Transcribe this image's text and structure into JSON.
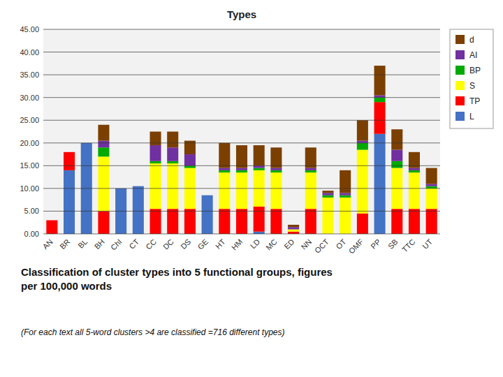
{
  "chart_data": {
    "type": "bar",
    "stacked": true,
    "grid": true,
    "legend": "right",
    "title": "Types",
    "categories": [
      "AN",
      "BR",
      "BL",
      "BH",
      "ChI",
      "CT",
      "CC",
      "DC",
      "DS",
      "GE",
      "HT",
      "HM",
      "LD",
      "MC",
      "ED",
      "NN",
      "OCT",
      "OT",
      "OMF",
      "PP",
      "SB",
      "TTC",
      "UT"
    ],
    "series": [
      {
        "name": "L",
        "color": "#4472C4",
        "values": [
          0.0,
          14.0,
          20.0,
          0.0,
          10.0,
          10.5,
          0.0,
          0.0,
          0.0,
          8.5,
          0.0,
          0.0,
          0.5,
          0.0,
          0.0,
          0.0,
          0.0,
          0.0,
          0.0,
          22.0,
          0.0,
          0.0,
          0.0
        ]
      },
      {
        "name": "TP",
        "color": "#FF0000",
        "values": [
          3.0,
          4.0,
          0.0,
          5.0,
          0.0,
          0.0,
          5.5,
          5.5,
          5.5,
          0.0,
          5.5,
          5.5,
          5.5,
          5.5,
          0.5,
          5.5,
          0.0,
          0.0,
          4.5,
          7.0,
          5.5,
          5.5,
          5.5
        ]
      },
      {
        "name": "S",
        "color": "#FFFF00",
        "values": [
          0.0,
          0.0,
          0.0,
          12.0,
          0.0,
          0.0,
          10.0,
          10.0,
          9.0,
          0.0,
          8.0,
          8.0,
          8.0,
          8.0,
          0.5,
          8.0,
          8.0,
          8.0,
          14.0,
          0.0,
          9.0,
          8.0,
          4.5
        ]
      },
      {
        "name": "BP",
        "color": "#00AA00",
        "values": [
          0.0,
          0.0,
          0.0,
          2.0,
          0.0,
          0.0,
          0.5,
          0.5,
          0.5,
          0.0,
          0.5,
          0.5,
          0.5,
          0.5,
          0.0,
          0.5,
          0.5,
          0.5,
          1.5,
          1.0,
          1.5,
          0.5,
          0.5
        ]
      },
      {
        "name": "AI",
        "color": "#7030A0",
        "values": [
          0.0,
          0.0,
          0.0,
          1.5,
          0.0,
          0.0,
          3.5,
          3.0,
          2.5,
          0.0,
          0.5,
          0.5,
          0.5,
          0.5,
          0.5,
          0.5,
          0.5,
          0.5,
          0.5,
          0.5,
          2.5,
          0.5,
          0.5
        ]
      },
      {
        "name": "d",
        "color": "#7B3F00",
        "values": [
          0.0,
          0.0,
          0.0,
          3.5,
          0.0,
          0.0,
          3.0,
          3.5,
          3.0,
          0.0,
          5.5,
          5.0,
          4.5,
          4.5,
          0.5,
          4.5,
          0.5,
          5.0,
          4.5,
          6.5,
          4.5,
          3.5,
          3.5
        ]
      }
    ],
    "ylim": [
      0,
      45
    ],
    "yticks": [
      {
        "value": 0,
        "label": "0.00"
      },
      {
        "value": 5,
        "label": "5.00"
      },
      {
        "value": 10,
        "label": "10.00"
      },
      {
        "value": 15,
        "label": "15.00"
      },
      {
        "value": 20,
        "label": "20.00"
      },
      {
        "value": 25,
        "label": "25.00"
      },
      {
        "value": 30,
        "label": "30.00"
      },
      {
        "value": 35,
        "label": "35.00"
      },
      {
        "value": 40,
        "label": "40.00"
      },
      {
        "value": 45,
        "label": "45.00"
      }
    ],
    "annotations": [
      "Classification of cluster types into 5 functional groups, figures\nper 100,000 words",
      "(For each text all 5-word clusters >4 are classified =716 different types)"
    ]
  }
}
